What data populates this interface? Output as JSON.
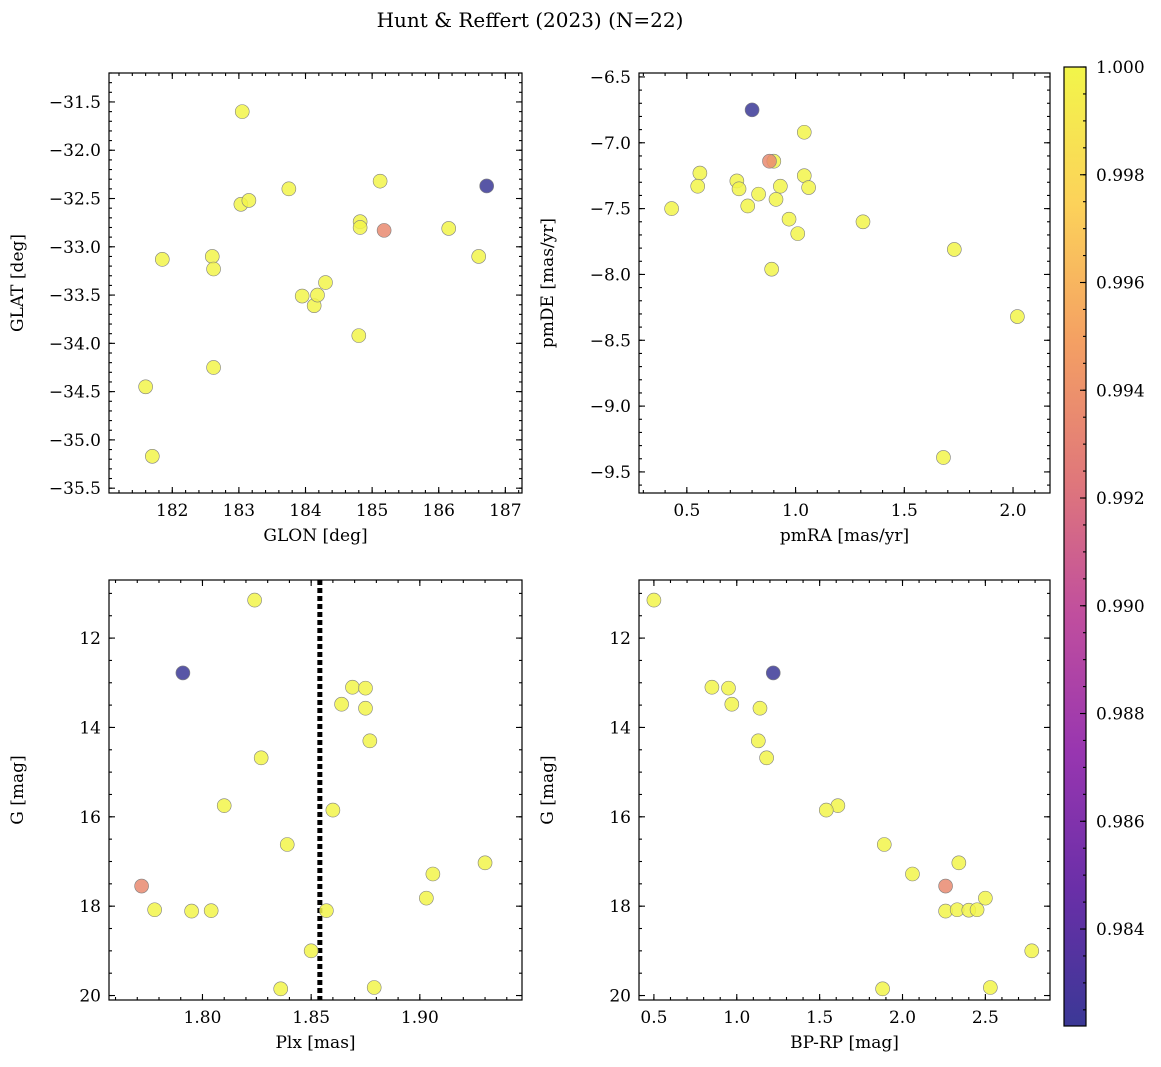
{
  "title": "Hunt & Reffert (2023) (N=22)",
  "colorbar": {
    "min": 0.9822,
    "max": 1.0,
    "ticks": [
      0.984,
      0.986,
      0.988,
      0.99,
      0.992,
      0.994,
      0.996,
      0.998,
      1.0
    ],
    "tick_labels": [
      "0.984",
      "0.986",
      "0.988",
      "0.990",
      "0.992",
      "0.994",
      "0.996",
      "0.998",
      "1.000"
    ],
    "colormap": "plasma",
    "stops": [
      "#3b3896",
      "#6a2fa8",
      "#9836b0",
      "#c04e9e",
      "#e0787a",
      "#f4a063",
      "#fcd25a",
      "#f2f54a"
    ]
  },
  "chart_data": [
    {
      "type": "scatter",
      "xlabel": "GLON [deg]",
      "ylabel": "GLAT [deg]",
      "xlim": [
        181.05,
        187.25
      ],
      "ylim": [
        -35.55,
        -31.2
      ],
      "y_inverted": false,
      "xticks": [
        182,
        183,
        184,
        185,
        186,
        187
      ],
      "xtick_labels": [
        "182",
        "183",
        "184",
        "185",
        "186",
        "187"
      ],
      "xminor": 0.2,
      "yticks": [
        -35.5,
        -35.0,
        -34.5,
        -34.0,
        -33.5,
        -33.0,
        -32.5,
        -32.0,
        -31.5
      ],
      "ytick_labels": [
        "−35.5",
        "−35.0",
        "−34.5",
        "−34.0",
        "−33.5",
        "−33.0",
        "−32.5",
        "−32.0",
        "−31.5"
      ],
      "yminor": 0.1,
      "vline": null,
      "points": [
        {
          "x": 183.05,
          "y": -31.6,
          "c": 1.0
        },
        {
          "x": 181.85,
          "y": -33.13,
          "c": 1.0
        },
        {
          "x": 181.6,
          "y": -34.45,
          "c": 1.0
        },
        {
          "x": 181.7,
          "y": -35.17,
          "c": 1.0
        },
        {
          "x": 182.6,
          "y": -33.1,
          "c": 1.0
        },
        {
          "x": 182.62,
          "y": -33.23,
          "c": 1.0
        },
        {
          "x": 182.62,
          "y": -34.25,
          "c": 1.0
        },
        {
          "x": 183.03,
          "y": -32.56,
          "c": 1.0
        },
        {
          "x": 183.15,
          "y": -32.52,
          "c": 1.0
        },
        {
          "x": 183.75,
          "y": -32.4,
          "c": 1.0
        },
        {
          "x": 183.95,
          "y": -33.51,
          "c": 1.0
        },
        {
          "x": 184.13,
          "y": -33.61,
          "c": 1.0
        },
        {
          "x": 184.18,
          "y": -33.5,
          "c": 1.0
        },
        {
          "x": 184.3,
          "y": -33.37,
          "c": 1.0
        },
        {
          "x": 184.8,
          "y": -33.92,
          "c": 1.0
        },
        {
          "x": 184.82,
          "y": -32.74,
          "c": 1.0
        },
        {
          "x": 184.82,
          "y": -32.8,
          "c": 1.0
        },
        {
          "x": 185.12,
          "y": -32.32,
          "c": 1.0
        },
        {
          "x": 185.18,
          "y": -32.83,
          "c": 0.9935
        },
        {
          "x": 186.15,
          "y": -32.81,
          "c": 1.0
        },
        {
          "x": 186.6,
          "y": -33.1,
          "c": 1.0
        },
        {
          "x": 186.72,
          "y": -32.37,
          "c": 0.9822
        }
      ]
    },
    {
      "type": "scatter",
      "xlabel": "pmRA [mas/yr]",
      "ylabel": "pmDE [mas/yr]",
      "xlim": [
        0.28,
        2.17
      ],
      "ylim": [
        -9.66,
        -6.47
      ],
      "y_inverted": false,
      "xticks": [
        0.5,
        1.0,
        1.5,
        2.0
      ],
      "xtick_labels": [
        "0.5",
        "1.0",
        "1.5",
        "2.0"
      ],
      "xminor": 0.1,
      "yticks": [
        -9.5,
        -9.0,
        -8.5,
        -8.0,
        -7.5,
        -7.0,
        -6.5
      ],
      "ytick_labels": [
        "−9.5",
        "−9.0",
        "−8.5",
        "−8.0",
        "−7.5",
        "−7.0",
        "−6.5"
      ],
      "yminor": 0.1,
      "vline": null,
      "points": [
        {
          "x": 0.8,
          "y": -6.75,
          "c": 0.9822
        },
        {
          "x": 1.04,
          "y": -6.92,
          "c": 1.0
        },
        {
          "x": 0.88,
          "y": -7.14,
          "c": 0.9935
        },
        {
          "x": 0.9,
          "y": -7.14,
          "c": 1.0
        },
        {
          "x": 0.56,
          "y": -7.23,
          "c": 1.0
        },
        {
          "x": 0.55,
          "y": -7.33,
          "c": 1.0
        },
        {
          "x": 0.73,
          "y": -7.29,
          "c": 1.0
        },
        {
          "x": 0.74,
          "y": -7.35,
          "c": 1.0
        },
        {
          "x": 1.04,
          "y": -7.25,
          "c": 1.0
        },
        {
          "x": 0.93,
          "y": -7.33,
          "c": 1.0
        },
        {
          "x": 1.06,
          "y": -7.34,
          "c": 1.0
        },
        {
          "x": 0.83,
          "y": -7.39,
          "c": 1.0
        },
        {
          "x": 0.91,
          "y": -7.43,
          "c": 1.0
        },
        {
          "x": 0.78,
          "y": -7.48,
          "c": 1.0
        },
        {
          "x": 0.43,
          "y": -7.5,
          "c": 1.0
        },
        {
          "x": 0.97,
          "y": -7.58,
          "c": 1.0
        },
        {
          "x": 1.01,
          "y": -7.69,
          "c": 1.0
        },
        {
          "x": 1.31,
          "y": -7.6,
          "c": 1.0
        },
        {
          "x": 0.89,
          "y": -7.96,
          "c": 1.0
        },
        {
          "x": 1.73,
          "y": -7.81,
          "c": 1.0
        },
        {
          "x": 2.02,
          "y": -8.32,
          "c": 1.0
        },
        {
          "x": 1.68,
          "y": -9.39,
          "c": 1.0
        }
      ]
    },
    {
      "type": "scatter",
      "xlabel": "Plx [mas]",
      "ylabel": "G [mag]",
      "xlim": [
        1.757,
        1.947
      ],
      "ylim": [
        20.1,
        10.7
      ],
      "y_inverted": true,
      "xticks": [
        1.8,
        1.85,
        1.9
      ],
      "xtick_labels": [
        "1.80",
        "1.85",
        "1.90"
      ],
      "xminor": 0.01,
      "yticks": [
        12,
        14,
        16,
        18,
        20
      ],
      "ytick_labels": [
        "12",
        "14",
        "16",
        "18",
        "20"
      ],
      "yminor": 0.5,
      "vline": 1.854,
      "points": [
        {
          "x": 1.824,
          "y": 11.15,
          "c": 1.0
        },
        {
          "x": 1.791,
          "y": 12.78,
          "c": 0.9822
        },
        {
          "x": 1.869,
          "y": 13.1,
          "c": 1.0
        },
        {
          "x": 1.875,
          "y": 13.12,
          "c": 1.0
        },
        {
          "x": 1.864,
          "y": 13.48,
          "c": 1.0
        },
        {
          "x": 1.875,
          "y": 13.57,
          "c": 1.0
        },
        {
          "x": 1.877,
          "y": 14.3,
          "c": 1.0
        },
        {
          "x": 1.827,
          "y": 14.68,
          "c": 1.0
        },
        {
          "x": 1.81,
          "y": 15.75,
          "c": 1.0
        },
        {
          "x": 1.86,
          "y": 15.85,
          "c": 1.0
        },
        {
          "x": 1.839,
          "y": 16.62,
          "c": 1.0
        },
        {
          "x": 1.93,
          "y": 17.03,
          "c": 1.0
        },
        {
          "x": 1.906,
          "y": 17.28,
          "c": 1.0
        },
        {
          "x": 1.772,
          "y": 17.55,
          "c": 0.9935
        },
        {
          "x": 1.903,
          "y": 17.82,
          "c": 1.0
        },
        {
          "x": 1.778,
          "y": 18.08,
          "c": 1.0
        },
        {
          "x": 1.795,
          "y": 18.11,
          "c": 1.0
        },
        {
          "x": 1.804,
          "y": 18.1,
          "c": 1.0
        },
        {
          "x": 1.857,
          "y": 18.1,
          "c": 1.0
        },
        {
          "x": 1.85,
          "y": 19.0,
          "c": 1.0
        },
        {
          "x": 1.836,
          "y": 19.85,
          "c": 1.0
        },
        {
          "x": 1.879,
          "y": 19.82,
          "c": 1.0
        }
      ]
    },
    {
      "type": "scatter",
      "xlabel": "BP-RP [mag]",
      "ylabel": "G [mag]",
      "xlim": [
        0.41,
        2.89
      ],
      "ylim": [
        20.1,
        10.7
      ],
      "y_inverted": true,
      "xticks": [
        0.5,
        1.0,
        1.5,
        2.0,
        2.5
      ],
      "xtick_labels": [
        "0.5",
        "1.0",
        "1.5",
        "2.0",
        "2.5"
      ],
      "xminor": 0.1,
      "yticks": [
        12,
        14,
        16,
        18,
        20
      ],
      "ytick_labels": [
        "12",
        "14",
        "16",
        "18",
        "20"
      ],
      "yminor": 0.5,
      "vline": null,
      "points": [
        {
          "x": 0.5,
          "y": 11.15,
          "c": 1.0
        },
        {
          "x": 1.22,
          "y": 12.78,
          "c": 0.9822
        },
        {
          "x": 0.85,
          "y": 13.1,
          "c": 1.0
        },
        {
          "x": 0.95,
          "y": 13.12,
          "c": 1.0
        },
        {
          "x": 0.97,
          "y": 13.48,
          "c": 1.0
        },
        {
          "x": 1.14,
          "y": 13.57,
          "c": 1.0
        },
        {
          "x": 1.13,
          "y": 14.3,
          "c": 1.0
        },
        {
          "x": 1.18,
          "y": 14.68,
          "c": 1.0
        },
        {
          "x": 1.61,
          "y": 15.75,
          "c": 1.0
        },
        {
          "x": 1.54,
          "y": 15.85,
          "c": 1.0
        },
        {
          "x": 1.89,
          "y": 16.62,
          "c": 1.0
        },
        {
          "x": 2.34,
          "y": 17.03,
          "c": 1.0
        },
        {
          "x": 2.06,
          "y": 17.28,
          "c": 1.0
        },
        {
          "x": 2.26,
          "y": 17.55,
          "c": 0.9935
        },
        {
          "x": 2.5,
          "y": 17.82,
          "c": 1.0
        },
        {
          "x": 2.26,
          "y": 18.11,
          "c": 1.0
        },
        {
          "x": 2.33,
          "y": 18.08,
          "c": 1.0
        },
        {
          "x": 2.4,
          "y": 18.09,
          "c": 1.0
        },
        {
          "x": 2.45,
          "y": 18.08,
          "c": 1.0
        },
        {
          "x": 2.78,
          "y": 19.0,
          "c": 1.0
        },
        {
          "x": 1.88,
          "y": 19.85,
          "c": 1.0
        },
        {
          "x": 2.53,
          "y": 19.82,
          "c": 1.0
        }
      ]
    }
  ]
}
